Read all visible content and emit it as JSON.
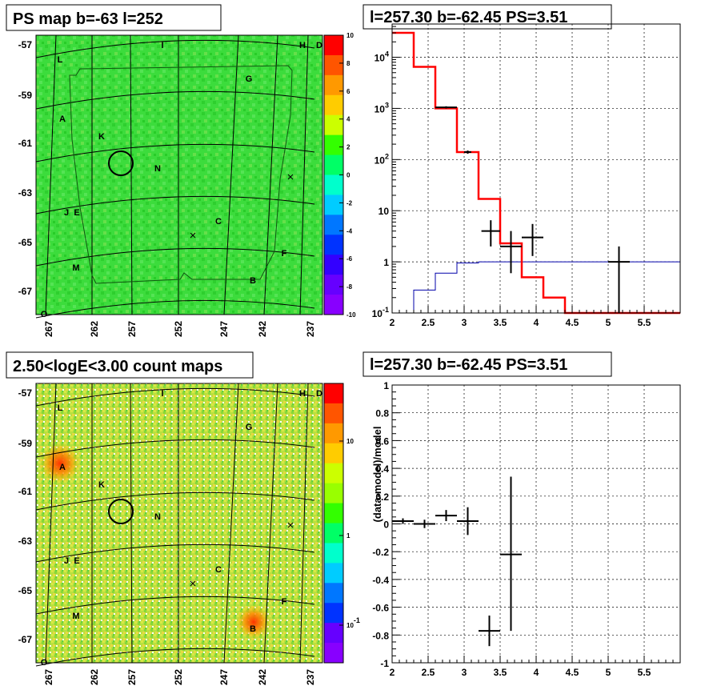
{
  "chart_data": [
    {
      "type": "heatmap",
      "title": "PS map b=-63 l=252",
      "x_ticks": [
        "267",
        "262",
        "257",
        "252",
        "247",
        "242",
        "237"
      ],
      "y_ticks": [
        "-57",
        "-59",
        "-61",
        "-63",
        "-65",
        "-67"
      ],
      "colorbar": {
        "min": -10,
        "max": 10,
        "ticks": [
          "10",
          "8",
          "6",
          "4",
          "2",
          "0",
          "-2",
          "-4",
          "-6",
          "-8",
          "-10"
        ],
        "palette": [
          "#ff0000",
          "#ff5500",
          "#ff9900",
          "#ffcc00",
          "#ccff00",
          "#33ff00",
          "#00ff66",
          "#00ffcc",
          "#00ccff",
          "#0077ff",
          "#0033ff",
          "#3300ff",
          "#6600ff",
          "#8800ff"
        ]
      },
      "base_color": "#33dd33",
      "source_labels": [
        "L",
        "I",
        "H",
        "D",
        "G",
        "A",
        "K",
        "N",
        "J",
        "E",
        "C",
        "F",
        "M",
        "B",
        "O"
      ],
      "marker_circle": {
        "l": 258.0,
        "b": -62.0
      }
    },
    {
      "type": "line",
      "title": "l=257.30 b=-62.45 PS=3.51",
      "xlim": [
        2,
        6
      ],
      "ylim_log": [
        -1,
        4.65
      ],
      "yscale": "log",
      "x_ticks": [
        "2",
        "2.5",
        "3",
        "3.5",
        "4",
        "4.5",
        "5",
        "5.5"
      ],
      "y_ticks": [
        "10^-1",
        "1",
        "10",
        "10^2",
        "10^3",
        "10^4"
      ],
      "model_red": {
        "edges": [
          2.0,
          2.3,
          2.6,
          2.9,
          3.2,
          3.5,
          3.8,
          4.1,
          4.4,
          6.0
        ],
        "values": [
          30000,
          6500,
          1000,
          140,
          17,
          2.3,
          0.5,
          0.2,
          0.1
        ]
      },
      "model_blue": {
        "edges": [
          2.3,
          2.6,
          2.9,
          3.2,
          6.0
        ],
        "values": [
          0.28,
          0.6,
          0.95,
          1.0
        ]
      },
      "data_points": [
        {
          "x": 2.75,
          "y": 1050,
          "xerr": 0.15,
          "ylo": 1000,
          "yhi": 1100
        },
        {
          "x": 3.05,
          "y": 140,
          "xerr": 0.05,
          "ylo": 130,
          "yhi": 150
        },
        {
          "x": 3.37,
          "y": 4.0,
          "xerr": 0.13,
          "ylo": 2.0,
          "yhi": 6.5
        },
        {
          "x": 3.65,
          "y": 2.0,
          "xerr": 0.15,
          "ylo": 0.6,
          "yhi": 4.0
        },
        {
          "x": 3.95,
          "y": 3.0,
          "xerr": 0.15,
          "ylo": 1.3,
          "yhi": 5.5
        },
        {
          "x": 5.15,
          "y": 1.0,
          "xerr": 0.15,
          "ylo": 0.1,
          "yhi": 2.0
        }
      ]
    },
    {
      "type": "heatmap",
      "title": "2.50<logE<3.00 count maps",
      "x_ticks": [
        "267",
        "262",
        "257",
        "252",
        "247",
        "242",
        "237"
      ],
      "y_ticks": [
        "-57",
        "-59",
        "-61",
        "-63",
        "-65",
        "-67"
      ],
      "colorbar": {
        "ticks": [
          "10",
          "1",
          "10^-1"
        ],
        "palette": [
          "#ff0000",
          "#ff5500",
          "#ff9900",
          "#ffcc00",
          "#ccff00",
          "#99ff00",
          "#33ff00",
          "#00ff66",
          "#00ffcc",
          "#00ccff",
          "#0077ff",
          "#0033ff",
          "#6600ff",
          "#8800ff"
        ]
      },
      "base_color": "#aadd44",
      "source_labels": [
        "L",
        "I",
        "H",
        "D",
        "G",
        "A",
        "K",
        "N",
        "J",
        "E",
        "C",
        "F",
        "M",
        "B",
        "O"
      ],
      "marker_circle": {
        "l": 258.0,
        "b": -62.0
      }
    },
    {
      "type": "scatter",
      "title": "l=257.30 b=-62.45 PS=3.51",
      "ylabel": "(data-model)/model",
      "xlim": [
        2,
        6
      ],
      "ylim": [
        -1,
        1
      ],
      "x_ticks": [
        "2",
        "2.5",
        "3",
        "3.5",
        "4",
        "4.5",
        "5",
        "5.5"
      ],
      "y_ticks": [
        "-1",
        "-0.8",
        "-0.6",
        "-0.4",
        "-0.2",
        "0",
        "0.2",
        "0.4",
        "0.6",
        "0.8",
        "1"
      ],
      "data_points": [
        {
          "x": 2.15,
          "y": 0.02,
          "xerr": 0.15,
          "ylo": 0.0,
          "yhi": 0.04
        },
        {
          "x": 2.45,
          "y": 0.0,
          "xerr": 0.15,
          "ylo": -0.03,
          "yhi": 0.03
        },
        {
          "x": 2.75,
          "y": 0.06,
          "xerr": 0.15,
          "ylo": 0.02,
          "yhi": 0.1
        },
        {
          "x": 3.05,
          "y": 0.02,
          "xerr": 0.15,
          "ylo": -0.08,
          "yhi": 0.12
        },
        {
          "x": 3.35,
          "y": -0.77,
          "xerr": 0.15,
          "ylo": -0.88,
          "yhi": -0.66
        },
        {
          "x": 3.65,
          "y": -0.22,
          "xerr": 0.15,
          "ylo": -0.77,
          "yhi": 0.34
        }
      ]
    }
  ]
}
